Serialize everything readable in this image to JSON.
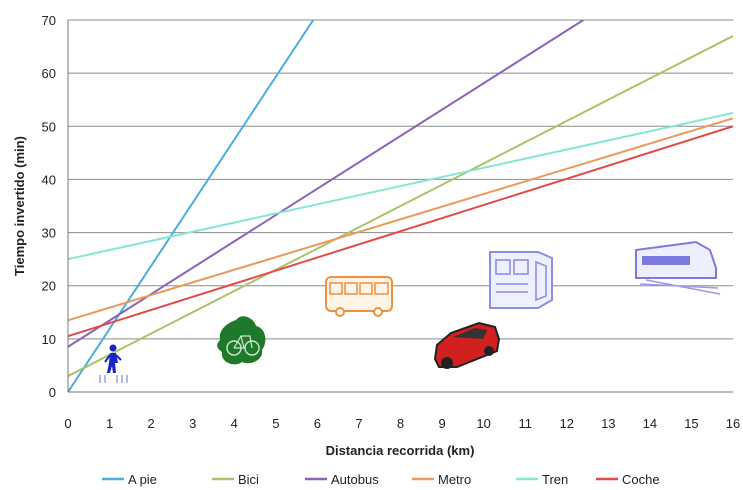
{
  "chart_data": {
    "type": "line",
    "xlabel": "Distancia recorrida (km)",
    "ylabel": "Tiempo invertido (min)",
    "xlim": [
      0,
      16
    ],
    "ylim": [
      0,
      70
    ],
    "x_ticks": [
      "0",
      "1",
      "2",
      "3",
      "4",
      "5",
      "6",
      "7",
      "8",
      "9",
      "10",
      "11",
      "12",
      "13",
      "14",
      "15",
      "16"
    ],
    "y_ticks": [
      "0",
      "10",
      "20",
      "30",
      "40",
      "50",
      "60",
      "70"
    ],
    "grid": "horizontal",
    "legend_position": "bottom",
    "series": [
      {
        "name": "A pie",
        "color": "#4aaedc",
        "x": [
          0,
          5.9
        ],
        "y": [
          0,
          70
        ]
      },
      {
        "name": "Bici",
        "color": "#a9c46a",
        "x": [
          0,
          16
        ],
        "y": [
          3,
          67
        ]
      },
      {
        "name": "Autobus",
        "color": "#8b62b8",
        "x": [
          0,
          12.4
        ],
        "y": [
          8.5,
          70
        ]
      },
      {
        "name": "Metro",
        "color": "#eb9a5e",
        "x": [
          0,
          16
        ],
        "y": [
          13.5,
          51.5
        ]
      },
      {
        "name": "Tren",
        "color": "#86e6d6",
        "x": [
          0,
          16
        ],
        "y": [
          25,
          52.5
        ]
      },
      {
        "name": "Coche",
        "color": "#e34a4a",
        "x": [
          0,
          16
        ],
        "y": [
          10.5,
          50
        ]
      }
    ],
    "pictograms": [
      {
        "icon": "pedestrian-icon",
        "color": "#1a22c8"
      },
      {
        "icon": "bicycle-icon",
        "color": "#1e7a2a"
      },
      {
        "icon": "bus-icon",
        "color": "#f0903c"
      },
      {
        "icon": "car-icon",
        "color": "#d22020"
      },
      {
        "icon": "metro-train-icon",
        "color": "#8a8ee8"
      },
      {
        "icon": "train-icon",
        "color": "#7a7ae0"
      }
    ]
  }
}
